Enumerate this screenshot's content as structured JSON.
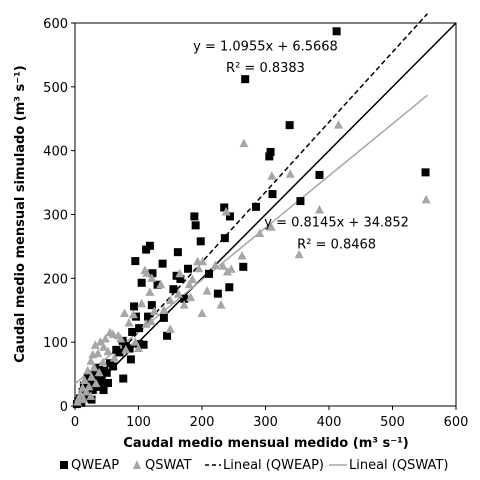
{
  "chart_data": {
    "type": "scatter",
    "xlabel": "Caudal medio mensual medido (m³ s⁻¹)",
    "ylabel": "Caudal medio mensual simulado (m³ s⁻¹)",
    "xlim": [
      0,
      600
    ],
    "ylim": [
      0,
      600
    ],
    "x_ticks": [
      0,
      100,
      200,
      300,
      400,
      500,
      600
    ],
    "y_ticks": [
      0,
      100,
      200,
      300,
      400,
      500,
      600
    ],
    "grid": false,
    "legend_position": "bottom",
    "series": [
      {
        "name": "QWEAP",
        "marker": "square",
        "color": "#000000",
        "points": [
          [
            412,
            587
          ],
          [
            268,
            512
          ],
          [
            338,
            440
          ],
          [
            308,
            398
          ],
          [
            306,
            391
          ],
          [
            552,
            366
          ],
          [
            385,
            362
          ],
          [
            311,
            332
          ],
          [
            355,
            321
          ],
          [
            285,
            312
          ],
          [
            188,
            297
          ],
          [
            244,
            297
          ],
          [
            235,
            311
          ],
          [
            190,
            283
          ],
          [
            198,
            258
          ],
          [
            236,
            263
          ],
          [
            118,
            251
          ],
          [
            112,
            245
          ],
          [
            162,
            241
          ],
          [
            95,
            227
          ],
          [
            138,
            223
          ],
          [
            265,
            218
          ],
          [
            178,
            215
          ],
          [
            122,
            208
          ],
          [
            211,
            207
          ],
          [
            160,
            204
          ],
          [
            166,
            199
          ],
          [
            105,
            193
          ],
          [
            130,
            190
          ],
          [
            225,
            176
          ],
          [
            243,
            186
          ],
          [
            155,
            183
          ],
          [
            172,
            168
          ],
          [
            121,
            158
          ],
          [
            93,
            156
          ],
          [
            96,
            140
          ],
          [
            140,
            138
          ],
          [
            115,
            140
          ],
          [
            101,
            122
          ],
          [
            90,
            116
          ],
          [
            145,
            110
          ],
          [
            75,
            102
          ],
          [
            101,
            97
          ],
          [
            108,
            96
          ],
          [
            80,
            94
          ],
          [
            86,
            90
          ],
          [
            65,
            88
          ],
          [
            70,
            84
          ],
          [
            88,
            73
          ],
          [
            55,
            67
          ],
          [
            60,
            62
          ],
          [
            38,
            60
          ],
          [
            46,
            55
          ],
          [
            50,
            52
          ],
          [
            33,
            50
          ],
          [
            24,
            48
          ],
          [
            20,
            45
          ],
          [
            42,
            42
          ],
          [
            76,
            43
          ],
          [
            30,
            38
          ],
          [
            52,
            36
          ],
          [
            25,
            33
          ],
          [
            14,
            32
          ],
          [
            18,
            30
          ],
          [
            28,
            25
          ],
          [
            45,
            25
          ],
          [
            12,
            22
          ],
          [
            20,
            20
          ],
          [
            16,
            14
          ],
          [
            8,
            12
          ],
          [
            26,
            10
          ],
          [
            5,
            8
          ],
          [
            10,
            5
          ],
          [
            3,
            3
          ],
          [
            40,
            30
          ]
        ]
      },
      {
        "name": "QSWAT",
        "marker": "triangle",
        "color": "#a6a6a6",
        "points": [
          [
            415,
            440
          ],
          [
            266,
            411
          ],
          [
            339,
            363
          ],
          [
            310,
            360
          ],
          [
            553,
            323
          ],
          [
            385,
            307
          ],
          [
            309,
            280
          ],
          [
            238,
            304
          ],
          [
            291,
            270
          ],
          [
            353,
            237
          ],
          [
            221,
            220
          ],
          [
            263,
            235
          ],
          [
            201,
            226
          ],
          [
            246,
            214
          ],
          [
            110,
            212
          ],
          [
            113,
            208
          ],
          [
            165,
            207
          ],
          [
            193,
            226
          ],
          [
            163,
            175
          ],
          [
            208,
            180
          ],
          [
            182,
            170
          ],
          [
            240,
            210
          ],
          [
            233,
            219
          ],
          [
            185,
            198
          ],
          [
            121,
            200
          ],
          [
            135,
            190
          ],
          [
            118,
            178
          ],
          [
            150,
            165
          ],
          [
            105,
            160
          ],
          [
            140,
            150
          ],
          [
            172,
            158
          ],
          [
            125,
            148
          ],
          [
            78,
            145
          ],
          [
            92,
            143
          ],
          [
            112,
            128
          ],
          [
            120,
            132
          ],
          [
            85,
            130
          ],
          [
            55,
            115
          ],
          [
            60,
            112
          ],
          [
            68,
            110
          ],
          [
            72,
            105
          ],
          [
            95,
            100
          ],
          [
            48,
            105
          ],
          [
            40,
            100
          ],
          [
            32,
            95
          ],
          [
            45,
            92
          ],
          [
            100,
            90
          ],
          [
            80,
            88
          ],
          [
            52,
            85
          ],
          [
            36,
            82
          ],
          [
            28,
            80
          ],
          [
            62,
            75
          ],
          [
            25,
            70
          ],
          [
            44,
            68
          ],
          [
            30,
            60
          ],
          [
            20,
            55
          ],
          [
            38,
            52
          ],
          [
            26,
            45
          ],
          [
            15,
            40
          ],
          [
            33,
            35
          ],
          [
            22,
            30
          ],
          [
            12,
            28
          ],
          [
            18,
            22
          ],
          [
            9,
            18
          ],
          [
            6,
            12
          ],
          [
            14,
            10
          ],
          [
            4,
            6
          ],
          [
            25,
            15
          ],
          [
            200,
            145
          ],
          [
            180,
            190
          ],
          [
            150,
            120
          ],
          [
            230,
            158
          ],
          [
            195,
            215
          ]
        ]
      },
      {
        "name": "Lineal (QWEAP)",
        "type": "trendline",
        "style": "dashed",
        "color": "#000000",
        "slope": 1.0955,
        "intercept": 6.5668,
        "x_range": [
          0,
          555
        ]
      },
      {
        "name": "Lineal (QSWAT)",
        "type": "trendline",
        "style": "solid",
        "color": "#a6a6a6",
        "slope": 0.8145,
        "intercept": 34.852,
        "x_range": [
          0,
          555
        ]
      }
    ],
    "reference_line": {
      "style": "solid",
      "color": "#000000",
      "from": [
        0,
        0
      ],
      "to": [
        600,
        600
      ]
    },
    "annotations": [
      {
        "text": "y = 1.0955x + 6.5668",
        "x": 300,
        "y": 557
      },
      {
        "text": "R² = 0.8383",
        "x": 300,
        "y": 523
      },
      {
        "text": "y = 0.8145x + 34.852",
        "x": 412,
        "y": 281
      },
      {
        "text": "R² = 0.8468",
        "x": 412,
        "y": 247
      }
    ],
    "legend": [
      {
        "label": "QWEAP",
        "symbol": "square",
        "color": "#000000"
      },
      {
        "label": "QSWAT",
        "symbol": "triangle",
        "color": "#a6a6a6"
      },
      {
        "label": "Lineal (QWEAP)",
        "symbol": "dashed-line",
        "color": "#000000"
      },
      {
        "label": "Lineal (QSWAT)",
        "symbol": "solid-line",
        "color": "#a6a6a6"
      }
    ]
  }
}
